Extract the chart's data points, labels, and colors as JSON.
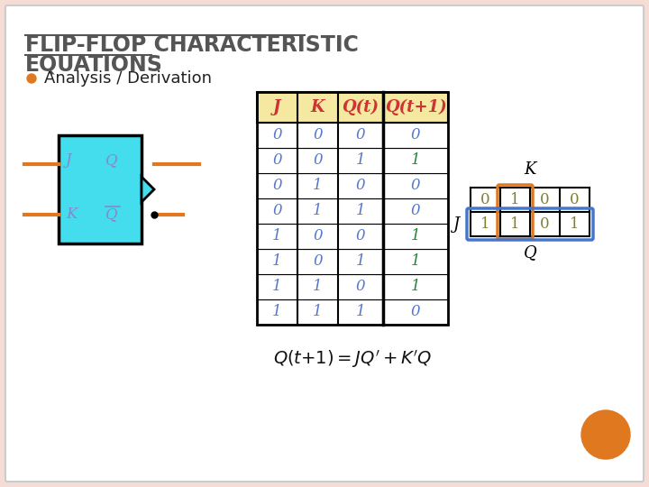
{
  "title_line1": "FLIP-FLOP CHARACTERISTIC",
  "title_line2": "EQUATIONS",
  "subtitle": "Analysis / Derivation",
  "bg_color": "#f5ddd5",
  "slide_bg": "#ffffff",
  "title_color": "#555555",
  "subtitle_bullet_color": "#e07820",
  "table_header_bg": "#f5e8a0",
  "table_border_color": "#000000",
  "col_headers": [
    "J",
    "K",
    "Q(t)",
    "Q(t+1)"
  ],
  "table_data": [
    [
      0,
      0,
      0,
      0
    ],
    [
      0,
      0,
      1,
      1
    ],
    [
      0,
      1,
      0,
      0
    ],
    [
      0,
      1,
      1,
      0
    ],
    [
      1,
      0,
      0,
      1
    ],
    [
      1,
      0,
      1,
      1
    ],
    [
      1,
      1,
      0,
      1
    ],
    [
      1,
      1,
      1,
      0
    ]
  ],
  "col123_color": "#5577cc",
  "col4_color_0": "#5577cc",
  "col4_color_1": "#228833",
  "jk_ff_bg": "#44ddee",
  "jk_ff_border": "#000000",
  "wire_color": "#e07820",
  "orange_circle_color": "#e07820",
  "header_red": "#cc3333",
  "kmap_val_color": "#808030",
  "kmap_highlight_orange": "#e07820",
  "kmap_highlight_blue": "#4477cc"
}
